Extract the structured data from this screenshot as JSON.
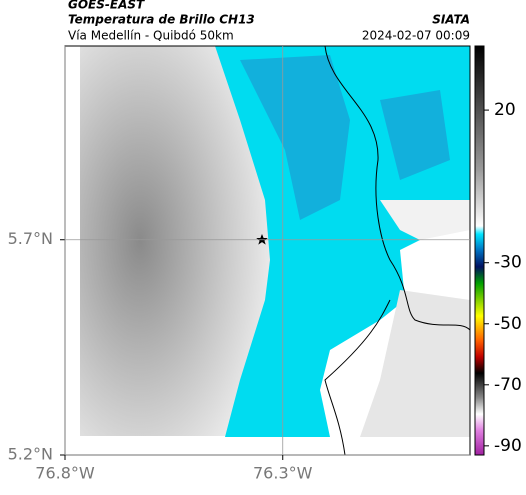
{
  "header": {
    "source": "GOES-EAST",
    "title": "Temperatura de Brillo CH13",
    "subtitle": "Vía Medellín - Quibdó 50km",
    "credit": "SIATA",
    "datetime": "2024-02-07 00:09"
  },
  "map": {
    "lonlim": [
      -76.8,
      -75.87
    ],
    "latlim": [
      5.2,
      6.15
    ],
    "lat_ticks": [
      {
        "value": 5.7,
        "label": "5.7°N"
      },
      {
        "value": 5.2,
        "label": "5.2°N"
      }
    ],
    "lon_ticks": [
      {
        "value": -76.8,
        "label": "76.8°W"
      },
      {
        "value": -76.3,
        "label": "76.3°W"
      }
    ]
  },
  "colorbar": {
    "lim": [
      -93,
      41
    ],
    "ticks": [
      20,
      -30,
      -50,
      -70,
      -90
    ]
  }
}
